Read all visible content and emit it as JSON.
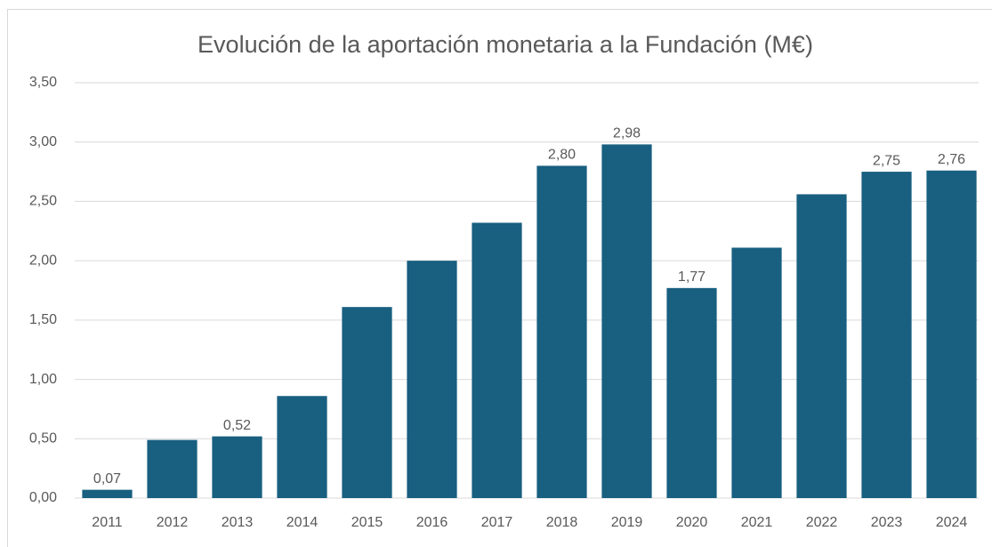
{
  "chart_data": {
    "type": "bar",
    "title": "Evolución de la aportación monetaria a la Fundación (M€)",
    "categories": [
      "2011",
      "2012",
      "2013",
      "2014",
      "2015",
      "2016",
      "2017",
      "2018",
      "2019",
      "2020",
      "2021",
      "2022",
      "2023",
      "2024"
    ],
    "values": [
      0.07,
      0.49,
      0.52,
      0.86,
      1.61,
      2.0,
      2.32,
      2.8,
      2.98,
      1.77,
      2.11,
      2.56,
      2.75,
      2.76
    ],
    "value_labels": [
      "0,07",
      null,
      "0,52",
      null,
      null,
      null,
      null,
      "2,80",
      "2,98",
      "1,77",
      null,
      null,
      "2,75",
      "2,76"
    ],
    "color": "#185f80",
    "ylim": [
      0,
      3.5
    ],
    "yticks": [
      {
        "value": 0,
        "label": "0,00"
      },
      {
        "value": 0.5,
        "label": "0,50"
      },
      {
        "value": 1,
        "label": "1,00"
      },
      {
        "value": 1.5,
        "label": "1,50"
      },
      {
        "value": 2,
        "label": "2,00"
      },
      {
        "value": 2.5,
        "label": "2,50"
      },
      {
        "value": 3,
        "label": "3,00"
      },
      {
        "value": 3.5,
        "label": "3,50"
      }
    ],
    "grid": true
  }
}
